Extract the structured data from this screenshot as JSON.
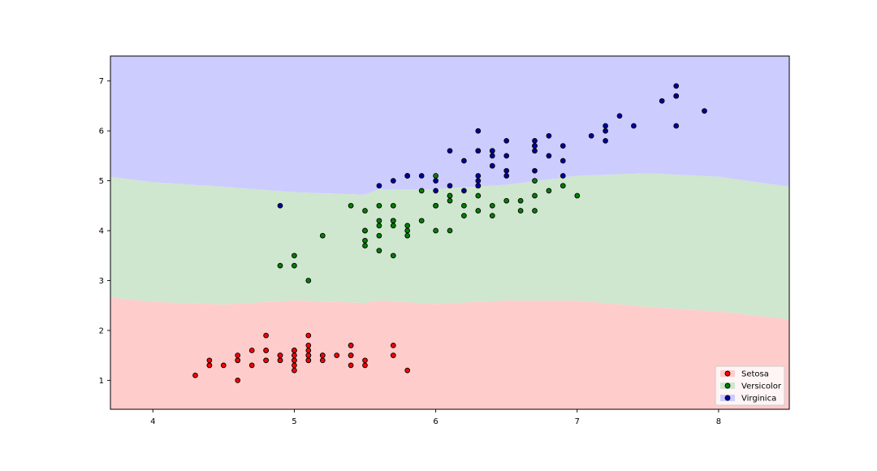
{
  "chart_data": {
    "type": "scatter",
    "title": "",
    "xlabel": "",
    "ylabel": "",
    "xlim": [
      3.7,
      8.5
    ],
    "ylim": [
      0.42,
      7.5
    ],
    "x_ticks": [
      4,
      5,
      6,
      7,
      8
    ],
    "y_ticks": [
      1,
      2,
      3,
      4,
      5,
      6,
      7
    ],
    "grid": false,
    "legend_placement": "lower-right",
    "region_colors": {
      "Setosa": "#ffcccc",
      "Versicolor": "#cfe6cf",
      "Virginica": "#ccccff"
    },
    "decision_boundaries": {
      "x": [
        3.7,
        4.0,
        4.5,
        5.0,
        5.5,
        5.6,
        6.0,
        6.5,
        7.0,
        7.5,
        8.0,
        8.5
      ],
      "setosa_upper": [
        2.66,
        2.57,
        2.52,
        2.6,
        2.55,
        2.6,
        2.53,
        2.6,
        2.6,
        2.47,
        2.38,
        2.22
      ],
      "versicolor_upper": [
        5.08,
        4.97,
        4.88,
        4.77,
        4.72,
        4.83,
        4.83,
        4.92,
        5.1,
        5.15,
        5.08,
        4.88
      ]
    },
    "series": [
      {
        "name": "Setosa",
        "color": "#ff0000",
        "points": [
          [
            5.1,
            1.4
          ],
          [
            4.9,
            1.4
          ],
          [
            4.7,
            1.3
          ],
          [
            4.6,
            1.5
          ],
          [
            5.0,
            1.4
          ],
          [
            5.4,
            1.7
          ],
          [
            4.6,
            1.4
          ],
          [
            5.0,
            1.5
          ],
          [
            4.4,
            1.4
          ],
          [
            4.9,
            1.5
          ],
          [
            5.4,
            1.5
          ],
          [
            4.8,
            1.6
          ],
          [
            4.8,
            1.4
          ],
          [
            4.3,
            1.1
          ],
          [
            5.8,
            1.2
          ],
          [
            5.7,
            1.5
          ],
          [
            5.4,
            1.3
          ],
          [
            5.1,
            1.4
          ],
          [
            5.7,
            1.7
          ],
          [
            5.1,
            1.5
          ],
          [
            5.4,
            1.7
          ],
          [
            5.1,
            1.5
          ],
          [
            4.6,
            1.0
          ],
          [
            5.1,
            1.7
          ],
          [
            4.8,
            1.9
          ],
          [
            5.0,
            1.6
          ],
          [
            5.0,
            1.6
          ],
          [
            5.2,
            1.5
          ],
          [
            5.2,
            1.4
          ],
          [
            4.7,
            1.6
          ],
          [
            4.8,
            1.6
          ],
          [
            5.4,
            1.5
          ],
          [
            5.2,
            1.5
          ],
          [
            5.5,
            1.4
          ],
          [
            4.9,
            1.5
          ],
          [
            5.0,
            1.2
          ],
          [
            5.5,
            1.3
          ],
          [
            4.9,
            1.4
          ],
          [
            4.4,
            1.3
          ],
          [
            5.1,
            1.5
          ],
          [
            5.0,
            1.3
          ],
          [
            4.5,
            1.3
          ],
          [
            4.4,
            1.3
          ],
          [
            5.0,
            1.6
          ],
          [
            5.1,
            1.9
          ],
          [
            4.8,
            1.4
          ],
          [
            5.1,
            1.6
          ],
          [
            4.6,
            1.4
          ],
          [
            5.3,
            1.5
          ],
          [
            5.0,
            1.4
          ]
        ]
      },
      {
        "name": "Versicolor",
        "color": "#008000",
        "points": [
          [
            7.0,
            4.7
          ],
          [
            6.4,
            4.5
          ],
          [
            6.9,
            4.9
          ],
          [
            5.5,
            4.0
          ],
          [
            6.5,
            4.6
          ],
          [
            5.7,
            4.5
          ],
          [
            6.3,
            4.7
          ],
          [
            4.9,
            3.3
          ],
          [
            6.6,
            4.6
          ],
          [
            5.2,
            3.9
          ],
          [
            5.0,
            3.5
          ],
          [
            5.9,
            4.2
          ],
          [
            6.0,
            4.0
          ],
          [
            6.1,
            4.7
          ],
          [
            5.6,
            3.6
          ],
          [
            6.7,
            4.4
          ],
          [
            5.6,
            4.5
          ],
          [
            5.8,
            4.1
          ],
          [
            6.2,
            4.5
          ],
          [
            5.6,
            3.9
          ],
          [
            5.9,
            4.8
          ],
          [
            6.1,
            4.0
          ],
          [
            6.3,
            4.9
          ],
          [
            6.1,
            4.7
          ],
          [
            6.4,
            4.3
          ],
          [
            6.6,
            4.4
          ],
          [
            6.8,
            4.8
          ],
          [
            6.7,
            5.0
          ],
          [
            6.0,
            4.5
          ],
          [
            5.7,
            3.5
          ],
          [
            5.5,
            3.8
          ],
          [
            5.5,
            3.7
          ],
          [
            5.8,
            3.9
          ],
          [
            6.0,
            5.1
          ],
          [
            5.4,
            4.5
          ],
          [
            6.0,
            4.5
          ],
          [
            6.7,
            4.7
          ],
          [
            6.3,
            4.4
          ],
          [
            5.6,
            4.1
          ],
          [
            5.5,
            4.0
          ],
          [
            5.5,
            4.4
          ],
          [
            6.1,
            4.6
          ],
          [
            5.8,
            4.0
          ],
          [
            5.0,
            3.3
          ],
          [
            5.6,
            4.2
          ],
          [
            5.7,
            4.2
          ],
          [
            5.7,
            4.2
          ],
          [
            6.2,
            4.3
          ],
          [
            5.1,
            3.0
          ],
          [
            5.7,
            4.1
          ]
        ]
      },
      {
        "name": "Virginica",
        "color": "#0000a0",
        "points": [
          [
            6.3,
            6.0
          ],
          [
            5.8,
            5.1
          ],
          [
            7.1,
            5.9
          ],
          [
            6.3,
            5.6
          ],
          [
            6.5,
            5.8
          ],
          [
            7.6,
            6.6
          ],
          [
            4.9,
            4.5
          ],
          [
            7.3,
            6.3
          ],
          [
            6.7,
            5.8
          ],
          [
            7.2,
            6.1
          ],
          [
            6.5,
            5.1
          ],
          [
            6.4,
            5.3
          ],
          [
            6.8,
            5.5
          ],
          [
            5.7,
            5.0
          ],
          [
            5.8,
            5.1
          ],
          [
            6.4,
            5.3
          ],
          [
            6.5,
            5.5
          ],
          [
            7.7,
            6.7
          ],
          [
            7.7,
            6.9
          ],
          [
            6.0,
            5.0
          ],
          [
            6.9,
            5.7
          ],
          [
            5.6,
            4.9
          ],
          [
            7.7,
            6.7
          ],
          [
            6.3,
            4.9
          ],
          [
            6.7,
            5.7
          ],
          [
            7.2,
            6.0
          ],
          [
            6.2,
            4.8
          ],
          [
            6.1,
            4.9
          ],
          [
            6.4,
            5.6
          ],
          [
            7.2,
            5.8
          ],
          [
            7.4,
            6.1
          ],
          [
            7.9,
            6.4
          ],
          [
            6.4,
            5.6
          ],
          [
            6.3,
            5.1
          ],
          [
            6.1,
            5.6
          ],
          [
            7.7,
            6.1
          ],
          [
            6.3,
            5.6
          ],
          [
            6.4,
            5.5
          ],
          [
            6.0,
            4.8
          ],
          [
            6.9,
            5.4
          ],
          [
            6.7,
            5.6
          ],
          [
            6.9,
            5.1
          ],
          [
            5.8,
            5.1
          ],
          [
            6.8,
            5.9
          ],
          [
            6.7,
            5.7
          ],
          [
            6.7,
            5.2
          ],
          [
            6.3,
            5.0
          ],
          [
            6.5,
            5.2
          ],
          [
            6.2,
            5.4
          ],
          [
            5.9,
            5.1
          ]
        ]
      }
    ]
  }
}
